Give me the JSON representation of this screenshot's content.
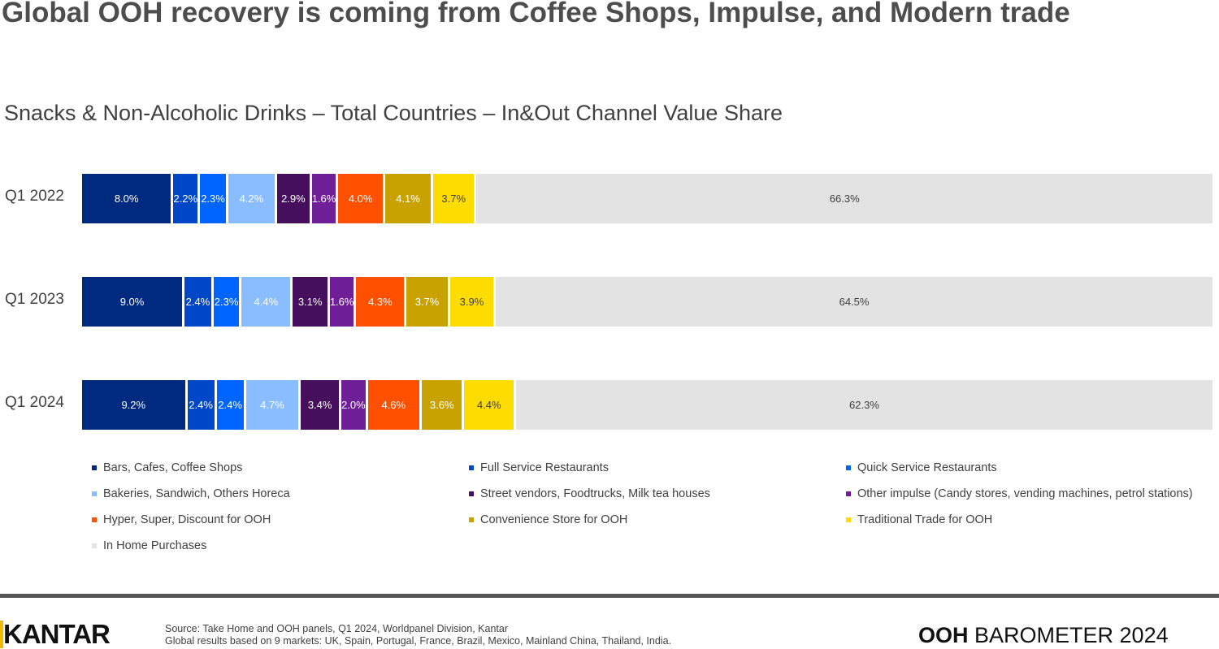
{
  "title": "Global OOH recovery is coming from Coffee Shops, Impulse, and Modern trade",
  "chart_data": {
    "type": "bar",
    "stacked": true,
    "orientation": "horizontal",
    "title": "Snacks & Non-Alcoholic Drinks – Total Countries – In&Out Channel Value Share",
    "categories": [
      "Q1 2022",
      "Q1 2023",
      "Q1 2024"
    ],
    "legend_position": "bottom",
    "series": [
      {
        "name": "Bars, Cafes, Coffee Shops",
        "color": "#002a7f",
        "values": [
          8.0,
          9.0,
          9.2
        ],
        "label_color": "#ffffff"
      },
      {
        "name": "Full Service Restaurants",
        "color": "#0047c8",
        "values": [
          2.2,
          2.4,
          2.4
        ],
        "label_color": "#ffffff"
      },
      {
        "name": "Quick Service Restaurants",
        "color": "#0064ff",
        "values": [
          2.3,
          2.3,
          2.4
        ],
        "label_color": "#ffffff"
      },
      {
        "name": "Bakeries, Sandwich, Others Horeca",
        "color": "#8abdff",
        "values": [
          4.2,
          4.4,
          4.7
        ],
        "label_color": "#ffffff"
      },
      {
        "name": "Street vendors, Foodtrucks, Milk tea houses",
        "color": "#460f5e",
        "values": [
          2.9,
          3.1,
          3.4
        ],
        "label_color": "#ffffff"
      },
      {
        "name": "Other impulse (Candy stores, vending machines, petrol stations)",
        "color": "#6e1e96",
        "values": [
          1.6,
          1.6,
          2.0
        ],
        "label_color": "#ffffff"
      },
      {
        "name": "Hyper, Super, Discount for OOH",
        "color": "#ff5000",
        "values": [
          4.0,
          4.3,
          4.6
        ],
        "label_color": "#ffffff"
      },
      {
        "name": "Convenience Store for OOH",
        "color": "#c8a200",
        "values": [
          4.1,
          3.7,
          3.6
        ],
        "label_color": "#ffffff"
      },
      {
        "name": "Traditional Trade for OOH",
        "color": "#ffdc00",
        "values": [
          3.7,
          3.9,
          4.4
        ],
        "label_color": "#404040"
      },
      {
        "name": "In Home Purchases",
        "color": "#e3e3e3",
        "values": [
          66.3,
          64.5,
          62.3
        ],
        "label_color": "#404040"
      }
    ]
  },
  "footer": {
    "logo": "KANTAR",
    "source_line1": "Source: Take Home and OOH panels, Q1 2024, Worldpanel Division, Kantar",
    "source_line2": "Global results based on 9 markets: UK, Spain, Portugal, France, Brazil, Mexico, Mainland China, Thailand, India.",
    "brand_bold": "OOH",
    "brand_rest": " BAROMETER 2024"
  }
}
